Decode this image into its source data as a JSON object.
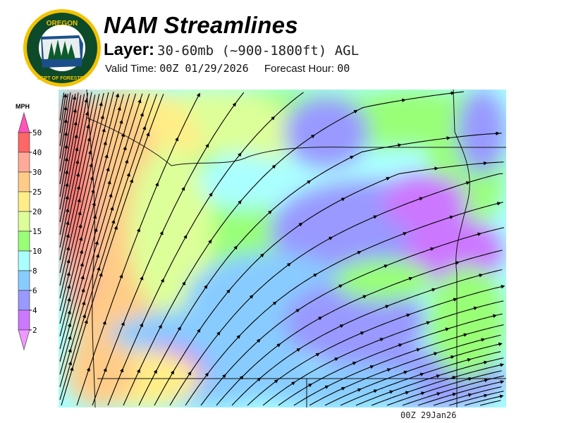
{
  "header": {
    "title": "NAM Streamlines",
    "layer_label": "Layer:",
    "layer_value": "30-60mb (~900-1800ft) AGL",
    "valid_label": "Valid Time:",
    "valid_value": "00Z 01/29/2026",
    "forecast_label": "Forecast Hour:",
    "forecast_value": "00"
  },
  "logo": {
    "top_text": "OREGON",
    "bottom_text": "DEPARTMENT OF FORESTRY",
    "colors": {
      "ring": "#f2c200",
      "inner": "#0d4a2a"
    }
  },
  "legend": {
    "unit": "MPH",
    "labels": [
      "50",
      "40",
      "30",
      "25",
      "20",
      "15",
      "10",
      "8",
      "6",
      "4",
      "2"
    ],
    "bands": [
      {
        "range": "40-50",
        "color": "#ff6666"
      },
      {
        "range": "30-40",
        "color": "#ffaa99"
      },
      {
        "range": "25-30",
        "color": "#ffcc88"
      },
      {
        "range": "20-25",
        "color": "#ffee88"
      },
      {
        "range": "15-20",
        "color": "#ddff99"
      },
      {
        "range": "10-15",
        "color": "#99ff77"
      },
      {
        "range": "8-10",
        "color": "#aaffff"
      },
      {
        "range": "6-8",
        "color": "#88ccff"
      },
      {
        "range": "4-6",
        "color": "#9999ff"
      },
      {
        "range": "2-4",
        "color": "#cc77ff"
      }
    ],
    "over_color": "#ff55bb",
    "under_color": "#ee99ff"
  },
  "footer": {
    "timestamp": "00Z 29Jan26"
  }
}
